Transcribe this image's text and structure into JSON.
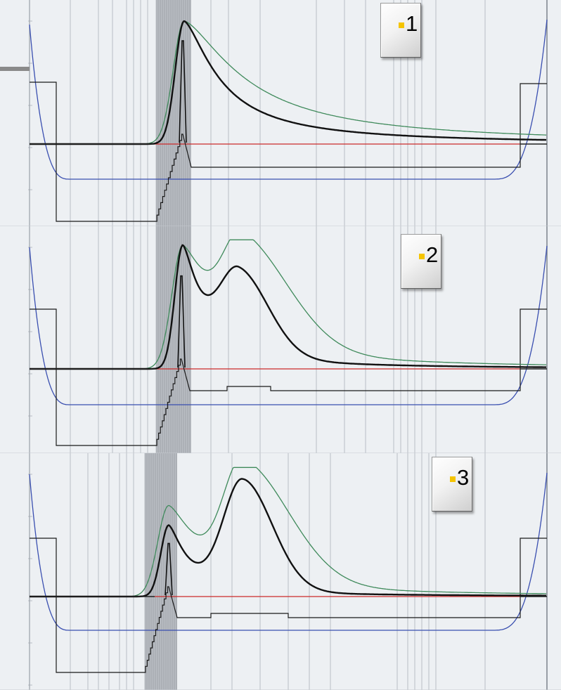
{
  "colors": {
    "background": "#e3e6ea",
    "panel": "#edf0f3",
    "grid": "#b9bec6",
    "shaded_band": "#8e939b",
    "red_baseline": "#cc2a2a",
    "blue_curve": "#3a4fb0",
    "green_curve": "#3f8a5b",
    "black_curve": "#111111",
    "step_line": "#1a1a1a",
    "bullet": "#f5c400"
  },
  "panels": [
    {
      "id": "panel-1",
      "label": "1"
    },
    {
      "id": "panel-2",
      "label": "2"
    },
    {
      "id": "panel-3",
      "label": "3"
    }
  ],
  "chart_data": [
    {
      "type": "line",
      "panel": "1",
      "series": [
        {
          "color": "#111111",
          "peaks": [
            {
              "x": 262,
              "height": 1.0
            }
          ]
        },
        {
          "color": "#3f8a5b",
          "peaks": [
            {
              "x": 262,
              "height": 1.0
            }
          ]
        },
        {
          "color": "#111111",
          "peaks": [
            {
              "x": 257,
              "height": 0.7
            }
          ]
        },
        {
          "color": "#3a4fb0"
        },
        {
          "color": "#cc2a2a"
        }
      ]
    },
    {
      "type": "line",
      "panel": "2",
      "series": [
        {
          "color": "#111111",
          "peaks": [
            {
              "x": 260,
              "height": 1.0
            },
            {
              "x": 340,
              "height": 0.73
            }
          ]
        },
        {
          "color": "#3f8a5b",
          "peaks": [
            {
              "x": 260,
              "height": 1.0
            },
            {
              "x": 345,
              "height": 0.85
            }
          ]
        },
        {
          "color": "#111111",
          "peaks": [
            {
              "x": 257,
              "height": 0.63
            }
          ]
        },
        {
          "color": "#3a4fb0"
        },
        {
          "color": "#cc2a2a"
        }
      ]
    },
    {
      "type": "line",
      "panel": "3",
      "series": [
        {
          "color": "#111111",
          "peaks": [
            {
              "x": 240,
              "height": 0.58
            },
            {
              "x": 345,
              "height": 1.0
            }
          ]
        },
        {
          "color": "#3f8a5b",
          "peaks": [
            {
              "x": 240,
              "height": 0.74
            },
            {
              "x": 345,
              "height": 1.0
            }
          ]
        },
        {
          "color": "#111111",
          "peaks": [
            {
              "x": 240,
              "height": 0.36
            }
          ]
        },
        {
          "color": "#3a4fb0"
        },
        {
          "color": "#cc2a2a"
        }
      ]
    }
  ]
}
